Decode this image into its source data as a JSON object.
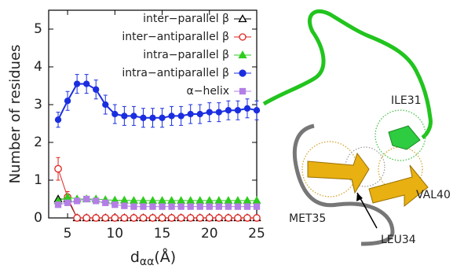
{
  "chart_data": {
    "type": "line",
    "ylabel": "Number of residues",
    "xlabel": "d",
    "xlabel_subscript": "αα",
    "xlabel_unit": "(Å)",
    "x": [
      4,
      5,
      6,
      7,
      8,
      9,
      10,
      11,
      12,
      13,
      14,
      15,
      16,
      17,
      18,
      19,
      20,
      21,
      22,
      23,
      24,
      25
    ],
    "xlim": [
      3,
      25
    ],
    "xticks": [
      5,
      10,
      15,
      20,
      25
    ],
    "ylim": [
      0,
      5.5
    ],
    "yticks": [
      0,
      1,
      2,
      3,
      4,
      5
    ],
    "legend": "top-right",
    "series": [
      {
        "name": "inter−parallel β",
        "color": "#000000",
        "marker": "open-triangle",
        "values": [
          0.5,
          0.5,
          0,
          0,
          0,
          0,
          0,
          0,
          0,
          0,
          0,
          0,
          0,
          0,
          0,
          0,
          0,
          0,
          0,
          0,
          0,
          0
        ]
      },
      {
        "name": "inter−antiparallel β",
        "color": "#e0201b",
        "marker": "open-circle",
        "values": [
          1.3,
          0.55,
          0,
          0,
          0,
          0,
          0,
          0,
          0,
          0,
          0,
          0,
          0,
          0,
          0,
          0,
          0,
          0,
          0,
          0,
          0,
          0
        ],
        "errors": [
          0.3,
          0.15,
          0,
          0,
          0,
          0,
          0,
          0,
          0,
          0,
          0,
          0,
          0,
          0,
          0,
          0,
          0,
          0,
          0,
          0,
          0,
          0
        ]
      },
      {
        "name": "intra−parallel β",
        "color": "#2ecc1e",
        "marker": "triangle",
        "values": [
          0.45,
          0.55,
          0.5,
          0.5,
          0.5,
          0.48,
          0.47,
          0.47,
          0.46,
          0.46,
          0.46,
          0.46,
          0.46,
          0.46,
          0.46,
          0.46,
          0.46,
          0.46,
          0.46,
          0.46,
          0.46,
          0.46
        ]
      },
      {
        "name": "intra−antiparallel β",
        "color": "#1a2ee0",
        "marker": "circle",
        "values": [
          2.6,
          3.1,
          3.55,
          3.55,
          3.4,
          3.0,
          2.75,
          2.7,
          2.7,
          2.65,
          2.65,
          2.65,
          2.7,
          2.7,
          2.75,
          2.75,
          2.8,
          2.8,
          2.85,
          2.85,
          2.9,
          2.85
        ],
        "errors": [
          0.2,
          0.25,
          0.25,
          0.25,
          0.25,
          0.25,
          0.25,
          0.25,
          0.25,
          0.25,
          0.25,
          0.25,
          0.25,
          0.25,
          0.25,
          0.25,
          0.25,
          0.25,
          0.25,
          0.25,
          0.25,
          0.25
        ]
      },
      {
        "name": "α−helix",
        "color": "#b37fe6",
        "marker": "square",
        "values": [
          0.35,
          0.4,
          0.45,
          0.5,
          0.45,
          0.4,
          0.35,
          0.32,
          0.3,
          0.3,
          0.3,
          0.3,
          0.3,
          0.3,
          0.3,
          0.3,
          0.3,
          0.3,
          0.3,
          0.3,
          0.3,
          0.3
        ]
      }
    ],
    "annotations": [
      "ILE31",
      "MET35",
      "LEU34",
      "VAL40"
    ]
  }
}
